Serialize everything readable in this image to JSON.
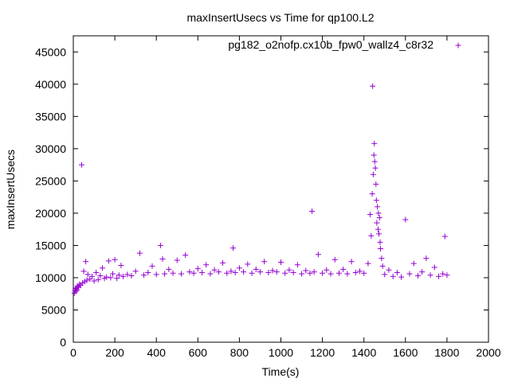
{
  "chart_data": {
    "type": "scatter",
    "title": "maxInsertUsecs vs Time for qp100.L2",
    "xlabel": "Time(s)",
    "ylabel": "maxInsertUsecs",
    "xlim": [
      0,
      2000
    ],
    "ylim": [
      0,
      47500
    ],
    "grid": false,
    "legend_position": "top-right",
    "x_ticks": [
      0,
      200,
      400,
      600,
      800,
      1000,
      1200,
      1400,
      1600,
      1800,
      2000
    ],
    "y_ticks": [
      0,
      5000,
      10000,
      15000,
      20000,
      25000,
      30000,
      35000,
      40000,
      45000
    ],
    "marker": "+",
    "color": "#9400d3",
    "series": [
      {
        "name": "pg182_o2nofp.cx10b_fpw0_wallz4_c8r32",
        "points": [
          [
            5,
            7600
          ],
          [
            8,
            8000
          ],
          [
            10,
            8300
          ],
          [
            12,
            7900
          ],
          [
            15,
            8400
          ],
          [
            18,
            8100
          ],
          [
            20,
            8700
          ],
          [
            25,
            8500
          ],
          [
            30,
            9000
          ],
          [
            35,
            8800
          ],
          [
            40,
            27500
          ],
          [
            45,
            9200
          ],
          [
            50,
            11000
          ],
          [
            55,
            9400
          ],
          [
            60,
            12500
          ],
          [
            65,
            9600
          ],
          [
            70,
            10500
          ],
          [
            80,
            9800
          ],
          [
            90,
            10200
          ],
          [
            100,
            9500
          ],
          [
            110,
            10800
          ],
          [
            120,
            9700
          ],
          [
            130,
            10300
          ],
          [
            140,
            11500
          ],
          [
            150,
            9900
          ],
          [
            160,
            10100
          ],
          [
            170,
            12600
          ],
          [
            180,
            10000
          ],
          [
            190,
            10600
          ],
          [
            200,
            12800
          ],
          [
            210,
            9900
          ],
          [
            220,
            10400
          ],
          [
            230,
            11900
          ],
          [
            240,
            10200
          ],
          [
            260,
            10500
          ],
          [
            280,
            10300
          ],
          [
            300,
            11000
          ],
          [
            320,
            13800
          ],
          [
            340,
            10400
          ],
          [
            360,
            10800
          ],
          [
            380,
            11800
          ],
          [
            400,
            10500
          ],
          [
            420,
            15000
          ],
          [
            430,
            12900
          ],
          [
            440,
            10600
          ],
          [
            460,
            11300
          ],
          [
            480,
            10700
          ],
          [
            500,
            12700
          ],
          [
            520,
            10600
          ],
          [
            540,
            13500
          ],
          [
            560,
            10900
          ],
          [
            580,
            10700
          ],
          [
            600,
            11400
          ],
          [
            620,
            10800
          ],
          [
            640,
            12000
          ],
          [
            660,
            10600
          ],
          [
            680,
            11200
          ],
          [
            700,
            10900
          ],
          [
            720,
            12300
          ],
          [
            740,
            10700
          ],
          [
            760,
            11000
          ],
          [
            770,
            14600
          ],
          [
            780,
            10800
          ],
          [
            800,
            11500
          ],
          [
            820,
            10900
          ],
          [
            840,
            12100
          ],
          [
            860,
            10700
          ],
          [
            880,
            11300
          ],
          [
            900,
            10900
          ],
          [
            920,
            12500
          ],
          [
            940,
            10800
          ],
          [
            960,
            11100
          ],
          [
            980,
            10900
          ],
          [
            1000,
            12400
          ],
          [
            1020,
            10700
          ],
          [
            1040,
            11200
          ],
          [
            1060,
            10800
          ],
          [
            1080,
            12000
          ],
          [
            1100,
            10600
          ],
          [
            1120,
            11100
          ],
          [
            1140,
            10700
          ],
          [
            1150,
            20300
          ],
          [
            1160,
            10900
          ],
          [
            1180,
            13600
          ],
          [
            1200,
            10700
          ],
          [
            1220,
            11200
          ],
          [
            1240,
            10600
          ],
          [
            1260,
            12800
          ],
          [
            1280,
            10700
          ],
          [
            1300,
            11300
          ],
          [
            1320,
            10600
          ],
          [
            1340,
            12500
          ],
          [
            1360,
            10800
          ],
          [
            1380,
            11000
          ],
          [
            1400,
            10700
          ],
          [
            1420,
            12200
          ],
          [
            1430,
            19800
          ],
          [
            1435,
            16500
          ],
          [
            1440,
            23000
          ],
          [
            1442,
            39700
          ],
          [
            1445,
            26000
          ],
          [
            1448,
            29000
          ],
          [
            1450,
            30800
          ],
          [
            1452,
            28000
          ],
          [
            1455,
            27000
          ],
          [
            1458,
            24500
          ],
          [
            1460,
            22000
          ],
          [
            1462,
            18500
          ],
          [
            1465,
            21000
          ],
          [
            1468,
            17500
          ],
          [
            1470,
            20000
          ],
          [
            1472,
            16800
          ],
          [
            1475,
            19300
          ],
          [
            1478,
            15500
          ],
          [
            1480,
            14500
          ],
          [
            1485,
            13000
          ],
          [
            1490,
            11800
          ],
          [
            1500,
            10500
          ],
          [
            1520,
            11200
          ],
          [
            1540,
            10200
          ],
          [
            1560,
            10800
          ],
          [
            1580,
            10100
          ],
          [
            1600,
            19000
          ],
          [
            1620,
            10600
          ],
          [
            1640,
            12200
          ],
          [
            1660,
            10300
          ],
          [
            1680,
            10900
          ],
          [
            1700,
            13000
          ],
          [
            1720,
            10400
          ],
          [
            1740,
            11600
          ],
          [
            1760,
            10200
          ],
          [
            1780,
            10600
          ],
          [
            1790,
            16400
          ],
          [
            1800,
            10400
          ]
        ]
      }
    ]
  }
}
